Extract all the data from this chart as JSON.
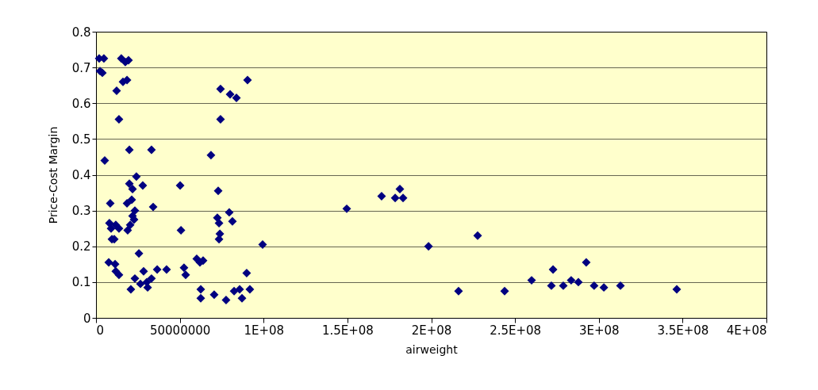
{
  "chart_data": {
    "type": "scatter",
    "xlabel": "airweight",
    "ylabel": "Price-Cost Margin",
    "marker": "diamond",
    "grid": "y",
    "xlim": [
      0,
      400000000
    ],
    "ylim": [
      0,
      0.8
    ],
    "xticks": [
      0,
      {
        "value": 50000000,
        "label": "50000000"
      },
      {
        "value": 100000000,
        "label": "1E+08"
      },
      {
        "value": 150000000,
        "label": "1.5E+08"
      },
      {
        "value": 200000000,
        "label": "2E+08"
      },
      {
        "value": 250000000,
        "label": "2.5E+08"
      },
      {
        "value": 300000000,
        "label": "3E+08"
      },
      {
        "value": 350000000,
        "label": "3.5E+08"
      },
      {
        "value": 400000000,
        "label": "4E+08"
      }
    ],
    "yticks": [
      0,
      0.1,
      0.2,
      0.3,
      0.4,
      0.5,
      0.6,
      0.7,
      0.8
    ],
    "series": [
      {
        "color": "#000080",
        "x": [
          1900000,
          4700000,
          2400000,
          3800000,
          5200000,
          15100000,
          17500000,
          19400000,
          16100000,
          18500000,
          12300000,
          13700000,
          19900000,
          8500000,
          8000000,
          9000000,
          11800000,
          10900000,
          9500000,
          13700000,
          11400000,
          7600000,
          11800000,
          13700000,
          19900000,
          21800000,
          24100000,
          27900000,
          18500000,
          21300000,
          23200000,
          22700000,
          20400000,
          21800000,
          18900000,
          25600000,
          20800000,
          23200000,
          28400000,
          26500000,
          30300000,
          30800000,
          33100000,
          34100000,
          33100000,
          36500000,
          42100000,
          50200000,
          50700000,
          52500000,
          53500000,
          60100000,
          62000000,
          62500000,
          62500000,
          63900000,
          68600000,
          70500000,
          72900000,
          72400000,
          73400000,
          73900000,
          73400000,
          74300000,
          74300000,
          77600000,
          79500000,
          80000000,
          81400000,
          82400000,
          83800000,
          85700000,
          87100000,
          89900000,
          90400000,
          91800000,
          99400000,
          149600000,
          170400000,
          178500000,
          181300000,
          183200000,
          198400000,
          216300000,
          227700000,
          243800000,
          259900000,
          271700000,
          272700000,
          278800000,
          283500000,
          287800000,
          292500000,
          297200000,
          303000000,
          312900000,
          346500000
        ],
        "values": [
          0.725,
          0.725,
          0.69,
          0.685,
          0.44,
          0.725,
          0.715,
          0.72,
          0.66,
          0.665,
          0.635,
          0.555,
          0.47,
          0.32,
          0.265,
          0.25,
          0.26,
          0.22,
          0.22,
          0.25,
          0.15,
          0.155,
          0.13,
          0.12,
          0.375,
          0.36,
          0.395,
          0.37,
          0.32,
          0.33,
          0.3,
          0.275,
          0.26,
          0.285,
          0.245,
          0.18,
          0.08,
          0.11,
          0.13,
          0.095,
          0.1,
          0.085,
          0.11,
          0.31,
          0.47,
          0.135,
          0.135,
          0.37,
          0.245,
          0.14,
          0.12,
          0.165,
          0.155,
          0.08,
          0.055,
          0.16,
          0.455,
          0.065,
          0.355,
          0.28,
          0.265,
          0.235,
          0.22,
          0.64,
          0.555,
          0.05,
          0.295,
          0.625,
          0.27,
          0.075,
          0.615,
          0.08,
          0.055,
          0.125,
          0.665,
          0.08,
          0.205,
          0.305,
          0.34,
          0.335,
          0.36,
          0.335,
          0.2,
          0.075,
          0.23,
          0.075,
          0.105,
          0.09,
          0.135,
          0.09,
          0.105,
          0.1,
          0.155,
          0.09,
          0.085,
          0.09,
          0.08
        ]
      }
    ]
  }
}
